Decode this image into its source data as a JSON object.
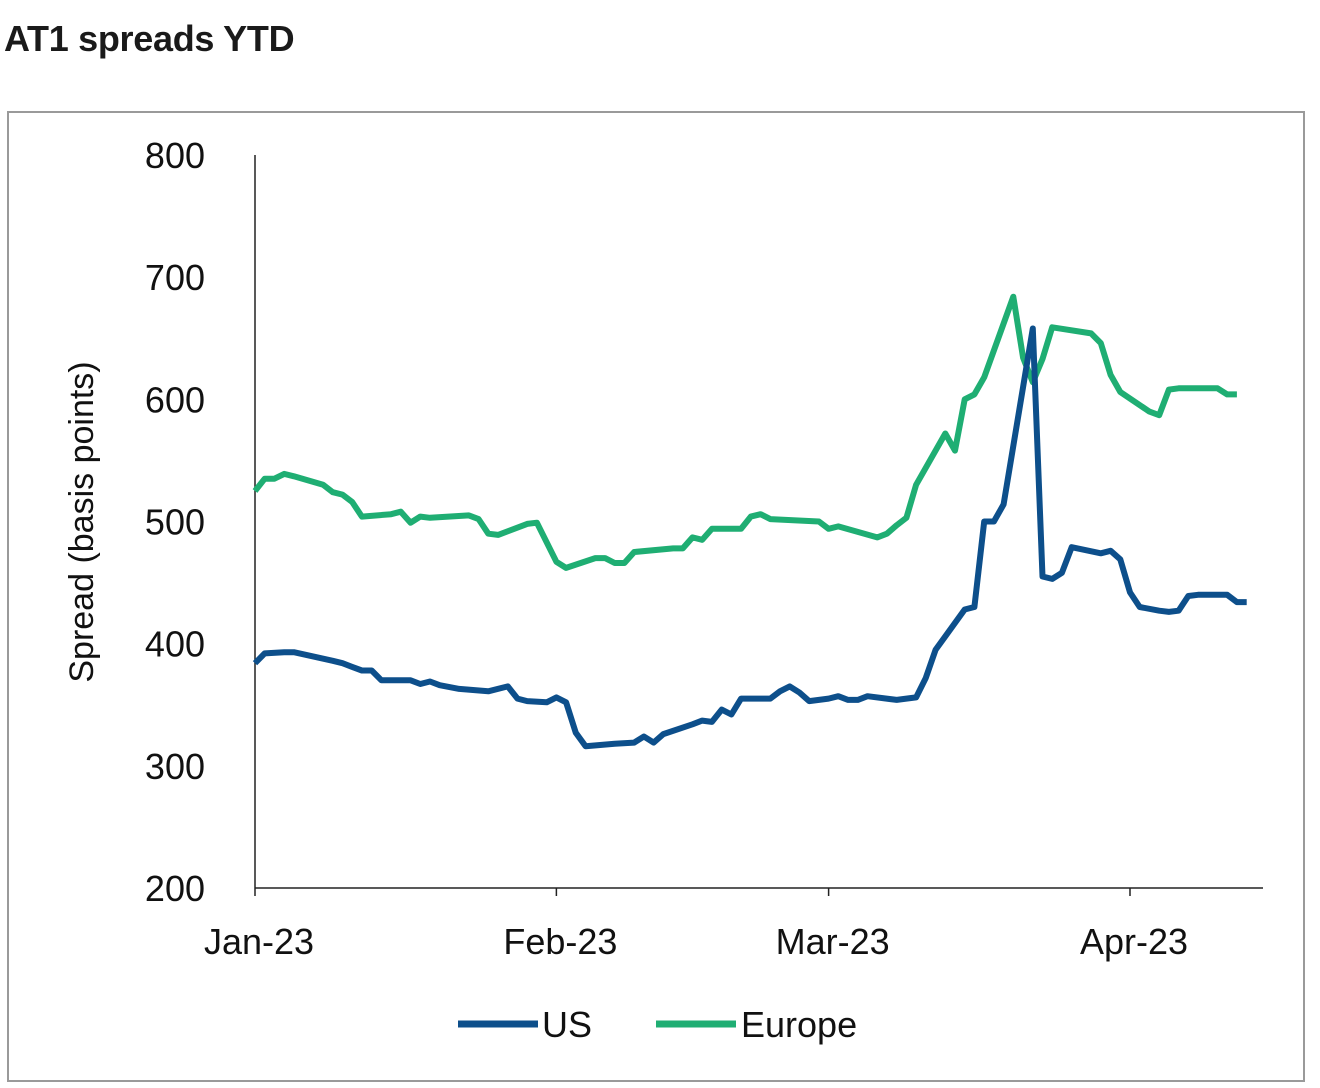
{
  "title": "AT1 spreads YTD",
  "chart_data": {
    "type": "line",
    "title": "AT1 spreads YTD",
    "xlabel": "",
    "ylabel": "Spread (basis points)",
    "ylim": [
      200,
      800
    ],
    "yticks": [
      200,
      300,
      400,
      500,
      600,
      700,
      800
    ],
    "xlim": [
      "2023-01-01",
      "2023-04-11"
    ],
    "xticks": [
      {
        "label": "Jan-23",
        "date": "2023-01-01"
      },
      {
        "label": "Feb-23",
        "date": "2023-02-01"
      },
      {
        "label": "Mar-23",
        "date": "2023-03-01"
      },
      {
        "label": "Apr-23",
        "date": "2023-04-01"
      }
    ],
    "grid": false,
    "legend": "bottom",
    "series": [
      {
        "name": "US",
        "color": "#0d4f8b",
        "points": [
          [
            "2023-01-01",
            384
          ],
          [
            "2023-01-02",
            392
          ],
          [
            "2023-01-04",
            393
          ],
          [
            "2023-01-05",
            393
          ],
          [
            "2023-01-09",
            386
          ],
          [
            "2023-01-10",
            384
          ],
          [
            "2023-01-11",
            381
          ],
          [
            "2023-01-12",
            378
          ],
          [
            "2023-01-13",
            378
          ],
          [
            "2023-01-14",
            370
          ],
          [
            "2023-01-17",
            370
          ],
          [
            "2023-01-18",
            367
          ],
          [
            "2023-01-19",
            369
          ],
          [
            "2023-01-20",
            366
          ],
          [
            "2023-01-22",
            363
          ],
          [
            "2023-01-25",
            361
          ],
          [
            "2023-01-27",
            365
          ],
          [
            "2023-01-28",
            355
          ],
          [
            "2023-01-29",
            353
          ],
          [
            "2023-01-31",
            352
          ],
          [
            "2023-02-01",
            356
          ],
          [
            "2023-02-02",
            352
          ],
          [
            "2023-02-03",
            327
          ],
          [
            "2023-02-04",
            316
          ],
          [
            "2023-02-07",
            318
          ],
          [
            "2023-02-09",
            319
          ],
          [
            "2023-02-10",
            324
          ],
          [
            "2023-02-11",
            319
          ],
          [
            "2023-02-12",
            326
          ],
          [
            "2023-02-15",
            334
          ],
          [
            "2023-02-16",
            337
          ],
          [
            "2023-02-17",
            336
          ],
          [
            "2023-02-18",
            346
          ],
          [
            "2023-02-19",
            342
          ],
          [
            "2023-02-20",
            355
          ],
          [
            "2023-02-23",
            355
          ],
          [
            "2023-02-24",
            361
          ],
          [
            "2023-02-25",
            365
          ],
          [
            "2023-02-26",
            360
          ],
          [
            "2023-02-27",
            353
          ],
          [
            "2023-03-01",
            355
          ],
          [
            "2023-03-02",
            357
          ],
          [
            "2023-03-03",
            354
          ],
          [
            "2023-03-04",
            354
          ],
          [
            "2023-03-05",
            357
          ],
          [
            "2023-03-08",
            354
          ],
          [
            "2023-03-10",
            356
          ],
          [
            "2023-03-11",
            372
          ],
          [
            "2023-03-12",
            395
          ],
          [
            "2023-03-15",
            428
          ],
          [
            "2023-03-16",
            430
          ],
          [
            "2023-03-17",
            500
          ],
          [
            "2023-03-18",
            500
          ],
          [
            "2023-03-19",
            514
          ],
          [
            "2023-03-22",
            658
          ],
          [
            "2023-03-23",
            455
          ],
          [
            "2023-03-24",
            453
          ],
          [
            "2023-03-25",
            458
          ],
          [
            "2023-03-26",
            479
          ],
          [
            "2023-03-29",
            474
          ],
          [
            "2023-03-30",
            476
          ],
          [
            "2023-03-31",
            469
          ],
          [
            "2023-04-01",
            442
          ],
          [
            "2023-04-02",
            430
          ],
          [
            "2023-04-04",
            427
          ],
          [
            "2023-04-05",
            426
          ],
          [
            "2023-04-06",
            427
          ],
          [
            "2023-04-07",
            439
          ],
          [
            "2023-04-08",
            440
          ],
          [
            "2023-04-11",
            440
          ],
          [
            "2023-04-12",
            434
          ],
          [
            "2023-04-13",
            434
          ]
        ]
      },
      {
        "name": "Europe",
        "color": "#1fae73",
        "points": [
          [
            "2023-01-01",
            525
          ],
          [
            "2023-01-02",
            535
          ],
          [
            "2023-01-03",
            535
          ],
          [
            "2023-01-04",
            539
          ],
          [
            "2023-01-05",
            537
          ],
          [
            "2023-01-08",
            530
          ],
          [
            "2023-01-09",
            524
          ],
          [
            "2023-01-10",
            522
          ],
          [
            "2023-01-11",
            516
          ],
          [
            "2023-01-12",
            504
          ],
          [
            "2023-01-15",
            506
          ],
          [
            "2023-01-16",
            508
          ],
          [
            "2023-01-17",
            499
          ],
          [
            "2023-01-18",
            504
          ],
          [
            "2023-01-19",
            503
          ],
          [
            "2023-01-23",
            505
          ],
          [
            "2023-01-24",
            502
          ],
          [
            "2023-01-25",
            490
          ],
          [
            "2023-01-26",
            489
          ],
          [
            "2023-01-29",
            498
          ],
          [
            "2023-01-30",
            499
          ],
          [
            "2023-02-01",
            467
          ],
          [
            "2023-02-02",
            462
          ],
          [
            "2023-02-05",
            470
          ],
          [
            "2023-02-06",
            470
          ],
          [
            "2023-02-07",
            466
          ],
          [
            "2023-02-08",
            466
          ],
          [
            "2023-02-09",
            475
          ],
          [
            "2023-02-13",
            478
          ],
          [
            "2023-02-14",
            478
          ],
          [
            "2023-02-15",
            487
          ],
          [
            "2023-02-16",
            485
          ],
          [
            "2023-02-17",
            494
          ],
          [
            "2023-02-20",
            494
          ],
          [
            "2023-02-21",
            504
          ],
          [
            "2023-02-22",
            506
          ],
          [
            "2023-02-23",
            502
          ],
          [
            "2023-02-28",
            500
          ],
          [
            "2023-03-01",
            494
          ],
          [
            "2023-03-02",
            496
          ],
          [
            "2023-03-06",
            487
          ],
          [
            "2023-03-07",
            490
          ],
          [
            "2023-03-08",
            497
          ],
          [
            "2023-03-09",
            503
          ],
          [
            "2023-03-10",
            530
          ],
          [
            "2023-03-13",
            572
          ],
          [
            "2023-03-14",
            558
          ],
          [
            "2023-03-15",
            600
          ],
          [
            "2023-03-16",
            604
          ],
          [
            "2023-03-17",
            618
          ],
          [
            "2023-03-20",
            684
          ],
          [
            "2023-03-21",
            634
          ],
          [
            "2023-03-22",
            614
          ],
          [
            "2023-03-23",
            633
          ],
          [
            "2023-03-24",
            659
          ],
          [
            "2023-03-28",
            654
          ],
          [
            "2023-03-29",
            646
          ],
          [
            "2023-03-30",
            620
          ],
          [
            "2023-03-31",
            606
          ],
          [
            "2023-04-03",
            590
          ],
          [
            "2023-04-04",
            587
          ],
          [
            "2023-04-05",
            608
          ],
          [
            "2023-04-06",
            609
          ],
          [
            "2023-04-10",
            609
          ],
          [
            "2023-04-11",
            604
          ],
          [
            "2023-04-12",
            604
          ]
        ]
      }
    ]
  }
}
